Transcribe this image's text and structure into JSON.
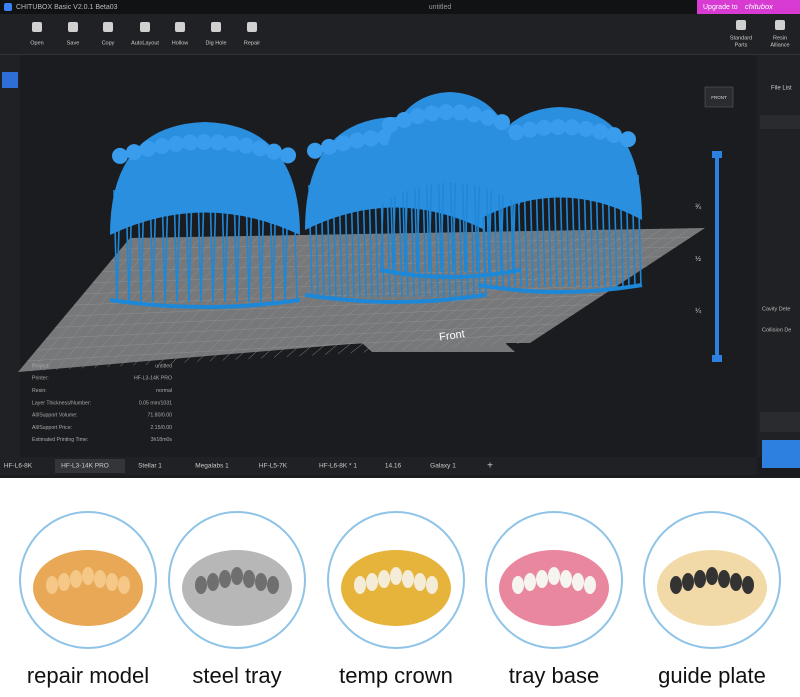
{
  "title_bar": {
    "app": "CHITUBOX Basic V2.0.1 Beta03",
    "document": "untitled",
    "upgrade": "Upgrade to",
    "brand": "chitubox"
  },
  "toolbar": {
    "tools": [
      "Open",
      "Save",
      "Copy",
      "AutoLayout",
      "Hollow",
      "Dig Hole",
      "Repair"
    ],
    "right_tools": [
      [
        "Standard",
        "Parts"
      ],
      [
        "Resin",
        "Alliance"
      ]
    ]
  },
  "right_panel": {
    "file_list": "File List",
    "items": [
      "Cavity Dete",
      "Collision De"
    ]
  },
  "viewport": {
    "front_label": "Front",
    "view_cube": "FRONT",
    "slider_labels": [
      "¾",
      "½",
      "¼"
    ]
  },
  "info": {
    "rows": [
      [
        "Project:",
        "untitled"
      ],
      [
        "Printer:",
        "HF-L3-14K PRO"
      ],
      [
        "Resin:",
        "normal"
      ],
      [
        "Layer Thickness/Number:",
        "0.05 mm/1031"
      ],
      [
        "All/Support Volume:",
        "71.80/0.00"
      ],
      [
        "All/Support Price:",
        "2.15/0.00"
      ],
      [
        "Estimated Printing Time:",
        "3h18m0s"
      ]
    ]
  },
  "tabs": [
    "HF-L6-8K",
    "HF-L3-14K PRO",
    "Stellar 1",
    "Megalabs 1",
    "HF-L5-7K",
    "HF-L6-8K * 1",
    "14.16",
    "Galaxy 1"
  ],
  "add_tab": "+",
  "samples": [
    "repair model",
    "steel tray",
    "temp crown",
    "tray base",
    "guide plate"
  ]
}
